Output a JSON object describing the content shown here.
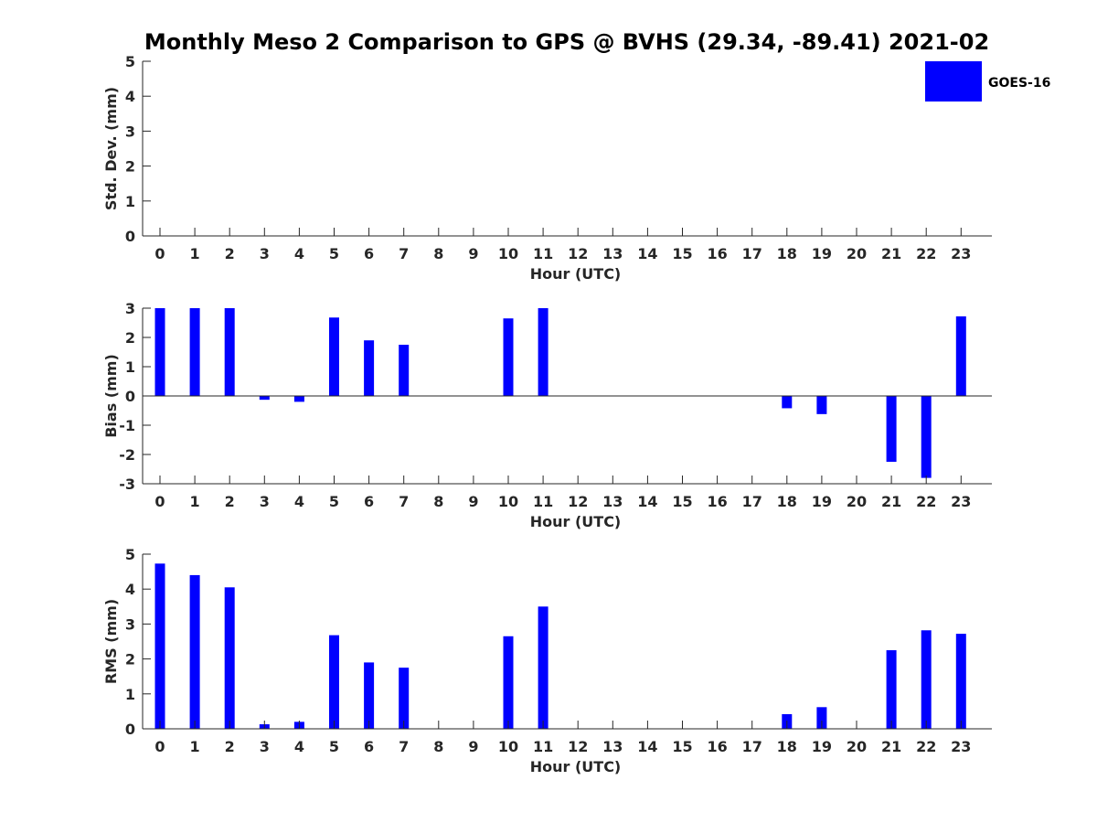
{
  "figure": {
    "title": "Monthly Meso 2 Comparison to GPS @ BVHS (29.34, -89.41) 2021-02",
    "legend": {
      "label": "GOES-16",
      "color": "#0000ff"
    }
  },
  "chart_data": [
    {
      "type": "bar",
      "id": "std",
      "title": "Monthly Meso 2 Comparison to GPS @ BVHS (29.34, -89.41) 2021-02",
      "xlabel": "Hour (UTC)",
      "ylabel": "Std. Dev. (mm)",
      "ylim": [
        0,
        5
      ],
      "yticks": [
        0,
        1,
        2,
        3,
        4,
        5
      ],
      "categories": [
        0,
        1,
        2,
        3,
        4,
        5,
        6,
        7,
        8,
        9,
        10,
        11,
        12,
        13,
        14,
        15,
        16,
        17,
        18,
        19,
        20,
        21,
        22,
        23
      ],
      "series": [
        {
          "name": "GOES-16",
          "color": "#0000ff",
          "values": [
            null,
            null,
            null,
            null,
            null,
            null,
            null,
            null,
            null,
            null,
            null,
            null,
            null,
            null,
            null,
            null,
            null,
            null,
            null,
            null,
            null,
            null,
            null,
            null
          ]
        }
      ]
    },
    {
      "type": "bar",
      "id": "bias",
      "xlabel": "Hour (UTC)",
      "ylabel": "Bias (mm)",
      "ylim": [
        -3,
        3
      ],
      "yticks": [
        -3,
        -2,
        -1,
        0,
        1,
        2,
        3
      ],
      "categories": [
        0,
        1,
        2,
        3,
        4,
        5,
        6,
        7,
        8,
        9,
        10,
        11,
        12,
        13,
        14,
        15,
        16,
        17,
        18,
        19,
        20,
        21,
        22,
        23
      ],
      "series": [
        {
          "name": "GOES-16",
          "color": "#0000ff",
          "values": [
            3.0,
            3.0,
            3.0,
            -0.13,
            -0.2,
            2.68,
            1.9,
            1.75,
            null,
            null,
            2.65,
            3.0,
            null,
            null,
            null,
            null,
            null,
            null,
            -0.42,
            -0.62,
            null,
            -2.25,
            -2.8,
            2.72
          ]
        }
      ]
    },
    {
      "type": "bar",
      "id": "rms",
      "xlabel": "Hour (UTC)",
      "ylabel": "RMS (mm)",
      "ylim": [
        0,
        5
      ],
      "yticks": [
        0,
        1,
        2,
        3,
        4,
        5
      ],
      "categories": [
        0,
        1,
        2,
        3,
        4,
        5,
        6,
        7,
        8,
        9,
        10,
        11,
        12,
        13,
        14,
        15,
        16,
        17,
        18,
        19,
        20,
        21,
        22,
        23
      ],
      "series": [
        {
          "name": "GOES-16",
          "color": "#0000ff",
          "values": [
            4.73,
            4.4,
            4.05,
            0.13,
            0.2,
            2.68,
            1.9,
            1.75,
            null,
            null,
            2.65,
            3.5,
            null,
            null,
            null,
            null,
            null,
            null,
            0.42,
            0.62,
            null,
            2.25,
            2.82,
            2.72
          ]
        }
      ]
    }
  ]
}
